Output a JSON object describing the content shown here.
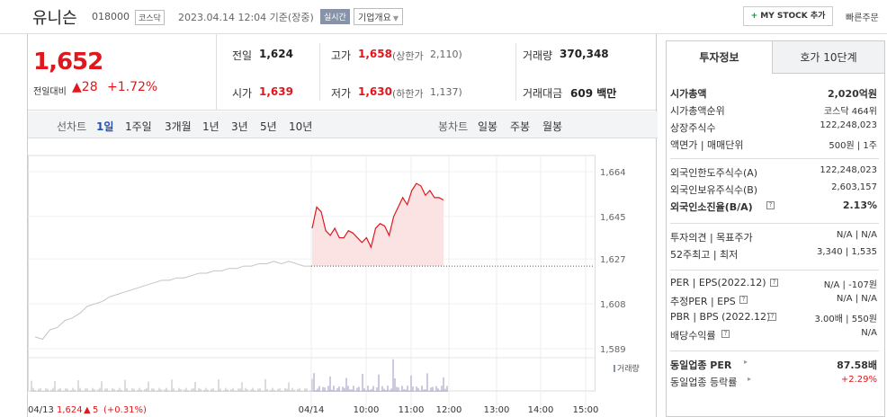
{
  "header": {
    "name": "유니슨",
    "code": "018000",
    "market": "코스닥",
    "timestamp": "2023.04.14 12:04 기준(장중)",
    "realtime": "실시간",
    "overview": "기업개요",
    "my_stock": "MY STOCK 추가",
    "quick_order": "빠른주문"
  },
  "price": {
    "current": "1,652",
    "change_label": "전일대비",
    "change": "28",
    "change_pct": "+1.72%"
  },
  "stats": {
    "prev_label": "전일",
    "prev": "1,624",
    "high_label": "고가",
    "high": "1,658",
    "upper_label": "(상한가",
    "upper": "2,110)",
    "volume_label": "거래량",
    "volume": "370,348",
    "open_label": "시가",
    "open": "1,639",
    "low_label": "저가",
    "low": "1,630",
    "lower_label": "(하한가",
    "lower": "1,137)",
    "amount_label": "거래대금",
    "amount": "609 백만"
  },
  "toolbar": {
    "line_label": "선차트",
    "periods": [
      "1일",
      "1주일",
      "3개월",
      "1년",
      "3년",
      "5년",
      "10년"
    ],
    "candle_label": "봉차트",
    "candles": [
      "일봉",
      "주봉",
      "월봉"
    ]
  },
  "chart_data": {
    "type": "line",
    "y_ticks": [
      "1,664",
      "1,645",
      "1,627",
      "1,608",
      "1,589"
    ],
    "ylim": [
      1589,
      1664
    ],
    "x_ticks": [
      "04/14",
      "10:00",
      "11:00",
      "12:00",
      "13:00",
      "14:00",
      "15:00"
    ],
    "volume_label": "거래량",
    "prev_day_label": "04/13",
    "prev_day_close": "1,624",
    "prev_day_change": "5",
    "prev_day_pct": "(+0.31%)",
    "prev_close_value": 1624,
    "series": [
      {
        "values_prev_day": [
          1594,
          1593,
          1597,
          1598,
          1601,
          1602,
          1604,
          1607,
          1608,
          1609,
          1611,
          1612,
          1613,
          1614,
          1615,
          1616,
          1617,
          1618,
          1618,
          1619,
          1619,
          1620,
          1621,
          1621,
          1622,
          1622,
          1623,
          1623,
          1624,
          1624,
          1625,
          1625,
          1626,
          1625,
          1626,
          1625,
          1624,
          1624
        ],
        "values_today": [
          1640,
          1649,
          1647,
          1639,
          1637,
          1640,
          1636,
          1636,
          1639,
          1638,
          1636,
          1634,
          1636,
          1632,
          1640,
          1642,
          1641,
          1637,
          1645,
          1649,
          1653,
          1650,
          1656,
          1659,
          1658,
          1654,
          1656,
          1653,
          1653,
          1652
        ]
      }
    ]
  },
  "right_panel": {
    "tab_info": "투자정보",
    "tab_hoga": "호가 10단계",
    "rows1": [
      {
        "k": "시가총액",
        "v": "2,020억원"
      },
      {
        "k": "시가총액순위",
        "v": "코스닥 464위"
      },
      {
        "k": "상장주식수",
        "v": "122,248,023"
      },
      {
        "k": "액면가 | 매매단위",
        "v": "500원 | 1주"
      }
    ],
    "rows2": [
      {
        "k": "외국인한도주식수(A)",
        "v": "122,248,023"
      },
      {
        "k": "외국인보유주식수(B)",
        "v": "2,603,157"
      },
      {
        "k": "외국인소진율(B/A)",
        "v": "2.13%"
      }
    ],
    "rows3": [
      {
        "k": "투자의견 | 목표주가",
        "v": "N/A | N/A"
      },
      {
        "k": "52주최고 | 최저",
        "v": "3,340 | 1,535"
      }
    ],
    "rows4": [
      {
        "k": "PER | EPS(2022.12)",
        "v": "N/A | -107원"
      },
      {
        "k": "추정PER | EPS",
        "v": "N/A | N/A"
      },
      {
        "k": "PBR | BPS (2022.12)",
        "v": "3.00배 | 550원"
      },
      {
        "k": "배당수익률",
        "v": "N/A"
      }
    ],
    "rows5": [
      {
        "k": "동일업종 PER",
        "v": "87.58배"
      },
      {
        "k": "동일업종 등락률",
        "v": "+2.29%"
      }
    ]
  }
}
